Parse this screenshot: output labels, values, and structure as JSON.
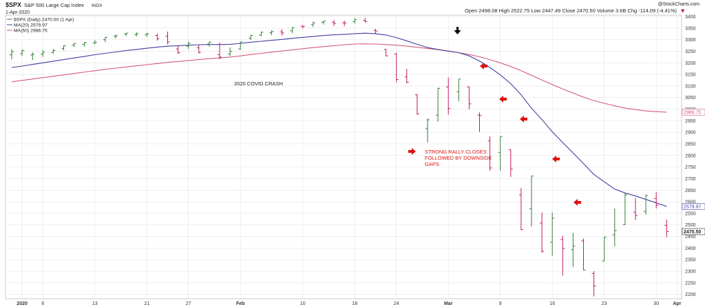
{
  "header": {
    "symbol": "$SPX",
    "name": "S&P 500 Large Cap Index",
    "exchange": "INDX",
    "date": "1-Apr-2020",
    "watermark": "@StockCharts.com",
    "ohlc_line": "Open 2498.08  High 2522.75  Low 2447.49  Close 2470.50  Volume 3.6B  Chg -114.09 (-4.41%)",
    "change_arrow": "▼"
  },
  "legend": {
    "price": "$SPX (Daily) 2470.50 (1 Apr)",
    "ma20": "MA(20) 2579.97",
    "ma50": "MA(50) 2986.75"
  },
  "annotations": {
    "title": "2020 COVID CRASH",
    "rally": [
      "STRONG RALLY CLOSES",
      "FOLLOWED BY DOWNSIDE",
      "GAPS"
    ]
  },
  "colors": {
    "up": "#2e7d32",
    "down": "#c2185b",
    "ma20": "#3f3fa0",
    "ma50": "#d45a78",
    "grid": "#e3e3e3",
    "arrow_red": "#e01010",
    "arrow_black": "#000000"
  },
  "chart_data": {
    "type": "ohlc",
    "y_range": [
      2190,
      3400
    ],
    "y_ticks": [
      2200,
      2250,
      2300,
      2350,
      2400,
      2450,
      2500,
      2550,
      2600,
      2650,
      2700,
      2750,
      2800,
      2850,
      2900,
      2950,
      3000,
      3050,
      3100,
      3150,
      3200,
      3250,
      3300,
      3350,
      3400
    ],
    "price_labels": [
      "2986.75",
      "2579.97",
      "2470.50"
    ],
    "x_labels": [
      {
        "label": "2020",
        "index": 1
      },
      {
        "label": "6",
        "index": 3
      },
      {
        "label": "13",
        "index": 8
      },
      {
        "label": "21",
        "index": 13
      },
      {
        "label": "27",
        "index": 17
      },
      {
        "label": "Feb",
        "index": 22
      },
      {
        "label": "10",
        "index": 28
      },
      {
        "label": "18",
        "index": 33
      },
      {
        "label": "24",
        "index": 37
      },
      {
        "label": "Mar",
        "index": 42
      },
      {
        "label": "9",
        "index": 47
      },
      {
        "label": "16",
        "index": 52
      },
      {
        "label": "23",
        "index": 57
      },
      {
        "label": "30",
        "index": 62
      },
      {
        "label": "Apr",
        "index": 64
      }
    ],
    "bars": [
      {
        "o": 3235,
        "h": 3258,
        "l": 3215,
        "c": 3248
      },
      {
        "o": 3240,
        "h": 3258,
        "l": 3230,
        "c": 3252
      },
      {
        "o": 3234,
        "h": 3245,
        "l": 3212,
        "c": 3237
      },
      {
        "o": 3238,
        "h": 3255,
        "l": 3226,
        "c": 3245
      },
      {
        "o": 3244,
        "h": 3260,
        "l": 3240,
        "c": 3253
      },
      {
        "o": 3262,
        "h": 3275,
        "l": 3253,
        "c": 3274
      },
      {
        "o": 3277,
        "h": 3285,
        "l": 3268,
        "c": 3283
      },
      {
        "o": 3280,
        "h": 3290,
        "l": 3270,
        "c": 3288
      },
      {
        "o": 3286,
        "h": 3298,
        "l": 3280,
        "c": 3289
      },
      {
        "o": 3300,
        "h": 3312,
        "l": 3290,
        "c": 3310
      },
      {
        "o": 3315,
        "h": 3322,
        "l": 3305,
        "c": 3317
      },
      {
        "o": 3324,
        "h": 3330,
        "l": 3315,
        "c": 3328
      },
      {
        "o": 3322,
        "h": 3332,
        "l": 3314,
        "c": 3326
      },
      {
        "o": 3321,
        "h": 3330,
        "l": 3312,
        "c": 3325
      },
      {
        "o": 3318,
        "h": 3327,
        "l": 3296,
        "c": 3304
      },
      {
        "o": 3315,
        "h": 3335,
        "l": 3280,
        "c": 3290
      },
      {
        "o": 3260,
        "h": 3275,
        "l": 3238,
        "c": 3244
      },
      {
        "o": 3272,
        "h": 3292,
        "l": 3260,
        "c": 3284
      },
      {
        "o": 3265,
        "h": 3278,
        "l": 3240,
        "c": 3245
      },
      {
        "o": 3281,
        "h": 3292,
        "l": 3270,
        "c": 3289
      },
      {
        "o": 3235,
        "h": 3288,
        "l": 3215,
        "c": 3225
      },
      {
        "o": 3238,
        "h": 3266,
        "l": 3230,
        "c": 3249
      },
      {
        "o": 3260,
        "h": 3290,
        "l": 3256,
        "c": 3290
      },
      {
        "o": 3306,
        "h": 3321,
        "l": 3299,
        "c": 3318
      },
      {
        "o": 3320,
        "h": 3335,
        "l": 3315,
        "c": 3332
      },
      {
        "o": 3330,
        "h": 3340,
        "l": 3320,
        "c": 3335
      },
      {
        "o": 3334,
        "h": 3345,
        "l": 3318,
        "c": 3329
      },
      {
        "o": 3338,
        "h": 3354,
        "l": 3328,
        "c": 3352
      },
      {
        "o": 3358,
        "h": 3362,
        "l": 3348,
        "c": 3357
      },
      {
        "o": 3365,
        "h": 3378,
        "l": 3355,
        "c": 3373
      },
      {
        "o": 3375,
        "h": 3382,
        "l": 3365,
        "c": 3380
      },
      {
        "o": 3375,
        "h": 3385,
        "l": 3360,
        "c": 3370
      },
      {
        "o": 3373,
        "h": 3382,
        "l": 3358,
        "c": 3372
      },
      {
        "o": 3378,
        "h": 3393,
        "l": 3370,
        "c": 3386
      },
      {
        "o": 3383,
        "h": 3394,
        "l": 3374,
        "c": 3378
      },
      {
        "o": 3340,
        "h": 3347,
        "l": 3325,
        "c": 3337
      },
      {
        "o": 3258,
        "h": 3260,
        "l": 3228,
        "c": 3230
      },
      {
        "o": 3238,
        "h": 3243,
        "l": 3116,
        "c": 3128
      },
      {
        "o": 3139,
        "h": 3174,
        "l": 3112,
        "c": 3116
      },
      {
        "o": 3062,
        "h": 3065,
        "l": 2976,
        "c": 2979
      },
      {
        "o": 2916,
        "h": 2960,
        "l": 2855,
        "c": 2954
      },
      {
        "o": 2974,
        "h": 3091,
        "l": 2946,
        "c": 3090
      },
      {
        "o": 3096,
        "h": 3137,
        "l": 2976,
        "c": 3003
      },
      {
        "o": 3075,
        "h": 3130,
        "l": 3034,
        "c": 3130
      },
      {
        "o": 3096,
        "h": 3098,
        "l": 2999,
        "c": 3023
      },
      {
        "o": 2974,
        "h": 2986,
        "l": 2901,
        "c": 2972
      },
      {
        "o": 2863,
        "h": 2882,
        "l": 2734,
        "c": 2746
      },
      {
        "o": 2813,
        "h": 2882,
        "l": 2734,
        "c": 2882
      },
      {
        "o": 2825,
        "h": 2825,
        "l": 2707,
        "c": 2741
      },
      {
        "o": 2630,
        "h": 2660,
        "l": 2478,
        "c": 2480
      },
      {
        "o": 2570,
        "h": 2712,
        "l": 2492,
        "c": 2711
      },
      {
        "o": 2508,
        "h": 2553,
        "l": 2380,
        "c": 2386
      },
      {
        "o": 2425,
        "h": 2553,
        "l": 2367,
        "c": 2529
      },
      {
        "o": 2437,
        "h": 2453,
        "l": 2281,
        "c": 2398
      },
      {
        "o": 2393,
        "h": 2466,
        "l": 2319,
        "c": 2409
      },
      {
        "o": 2431,
        "h": 2441,
        "l": 2305,
        "c": 2305
      },
      {
        "o": 2290,
        "h": 2300,
        "l": 2191,
        "c": 2237
      },
      {
        "o": 2344,
        "h": 2449,
        "l": 2344,
        "c": 2447
      },
      {
        "o": 2458,
        "h": 2571,
        "l": 2407,
        "c": 2476
      },
      {
        "o": 2501,
        "h": 2637,
        "l": 2500,
        "c": 2630
      },
      {
        "o": 2555,
        "h": 2615,
        "l": 2520,
        "c": 2541
      },
      {
        "o": 2558,
        "h": 2631,
        "l": 2545,
        "c": 2627
      },
      {
        "o": 2614,
        "h": 2641,
        "l": 2571,
        "c": 2585
      },
      {
        "o": 2498,
        "h": 2523,
        "l": 2447,
        "c": 2471
      }
    ],
    "ma20": [
      3180,
      3186,
      3193,
      3200,
      3207,
      3214,
      3221,
      3228,
      3235,
      3241,
      3247,
      3253,
      3258,
      3263,
      3268,
      3272,
      3274,
      3276,
      3278,
      3279,
      3279,
      3280,
      3284,
      3289,
      3293,
      3297,
      3301,
      3306,
      3310,
      3314,
      3318,
      3321,
      3323,
      3326,
      3328,
      3326,
      3320,
      3309,
      3295,
      3280,
      3266,
      3258,
      3250,
      3244,
      3230,
      3208,
      3180,
      3148,
      3110,
      3062,
      3004,
      2955,
      2902,
      2856,
      2811,
      2765,
      2718,
      2686,
      2655,
      2638,
      2625,
      2610,
      2595,
      2580
    ],
    "ma50": [
      3118,
      3124,
      3130,
      3136,
      3142,
      3148,
      3154,
      3160,
      3166,
      3172,
      3177,
      3182,
      3187,
      3192,
      3197,
      3202,
      3206,
      3210,
      3214,
      3218,
      3221,
      3225,
      3230,
      3236,
      3241,
      3246,
      3251,
      3256,
      3261,
      3266,
      3270,
      3274,
      3278,
      3281,
      3282,
      3281,
      3279,
      3276,
      3272,
      3267,
      3262,
      3257,
      3251,
      3244,
      3236,
      3226,
      3214,
      3200,
      3184,
      3166,
      3146,
      3126,
      3106,
      3087,
      3069,
      3052,
      3037,
      3025,
      3014,
      3005,
      2998,
      2992,
      2989,
      2987
    ]
  }
}
